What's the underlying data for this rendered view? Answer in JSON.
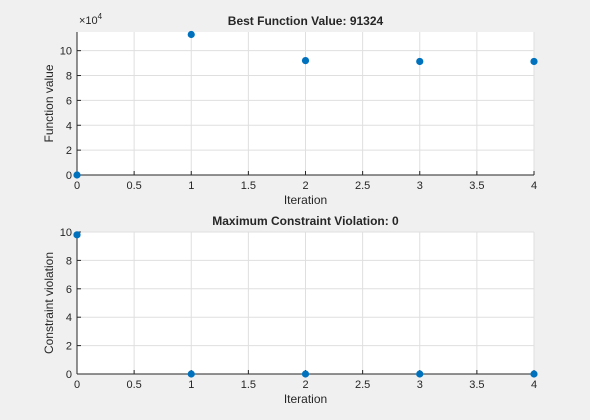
{
  "colors": {
    "background": "#f0f0f0",
    "axes": "#ffffff",
    "marker": "#0072bd",
    "grid": "#dfdfdf",
    "axis_line": "#262626"
  },
  "chart_data": [
    {
      "type": "scatter",
      "title": "Best Function Value: 91324",
      "xlabel": "Iteration",
      "ylabel": "Function value",
      "y_exponent_label": "×10",
      "y_exponent_power": "4",
      "xlim": [
        0,
        4
      ],
      "ylim": [
        0,
        11.5
      ],
      "xticks": [
        0,
        0.5,
        1,
        1.5,
        2,
        2.5,
        3,
        3.5,
        4
      ],
      "xtick_labels": [
        "0",
        "0.5",
        "1",
        "1.5",
        "2",
        "2.5",
        "3",
        "3.5",
        "4"
      ],
      "yticks": [
        0,
        2,
        4,
        6,
        8,
        10
      ],
      "ytick_labels": [
        "0",
        "2",
        "4",
        "6",
        "8",
        "10"
      ],
      "grid": true,
      "x": [
        0,
        1,
        2,
        3,
        4
      ],
      "y": [
        0,
        11.3,
        9.2,
        9.13,
        9.13
      ]
    },
    {
      "type": "scatter",
      "title": "Maximum Constraint Violation: 0",
      "xlabel": "Iteration",
      "ylabel": "Constraint violation",
      "xlim": [
        0,
        4
      ],
      "ylim": [
        0,
        10
      ],
      "xticks": [
        0,
        0.5,
        1,
        1.5,
        2,
        2.5,
        3,
        3.5,
        4
      ],
      "xtick_labels": [
        "0",
        "0.5",
        "1",
        "1.5",
        "2",
        "2.5",
        "3",
        "3.5",
        "4"
      ],
      "yticks": [
        0,
        2,
        4,
        6,
        8,
        10
      ],
      "ytick_labels": [
        "0",
        "2",
        "4",
        "6",
        "8",
        "10"
      ],
      "grid": true,
      "x": [
        0,
        1,
        2,
        3,
        4
      ],
      "y": [
        9.8,
        0,
        0,
        0,
        0
      ]
    }
  ]
}
